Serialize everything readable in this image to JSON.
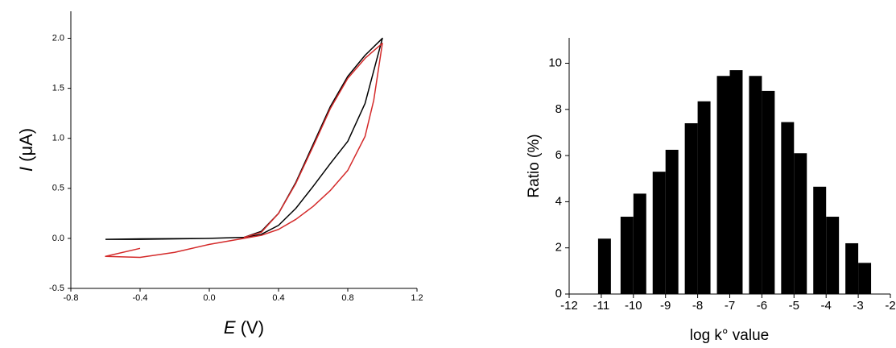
{
  "chart_data": [
    {
      "type": "line",
      "xlabel_symbol": "E",
      "xlabel_unit": "(V)",
      "ylabel_symbol": "I",
      "ylabel_unit": "(μA)",
      "xlim": [
        -0.8,
        1.2
      ],
      "xticks": [
        -0.8,
        -0.4,
        {
          "value": 0,
          "label": "0.0"
        },
        0.4,
        0.8,
        1.2
      ],
      "ylim": [
        -0.5,
        2.27
      ],
      "yticks": [
        -0.5,
        {
          "value": 0,
          "label": "0.0"
        },
        0.5,
        {
          "value": 1,
          "label": "1.0"
        },
        1.5,
        {
          "value": 2,
          "label": "2.0"
        }
      ],
      "series": [
        {
          "color": "#000000",
          "x": [
            -0.6,
            -0.4,
            0,
            0.2,
            0.3,
            0.4,
            0.5,
            0.6,
            0.7,
            0.8,
            0.9,
            1.0,
            0.9,
            0.8,
            0.7,
            0.6,
            0.5,
            0.4,
            0.3,
            0.2,
            0,
            -0.4,
            -0.6
          ],
          "values": [
            -0.01,
            -0.005,
            0,
            0.01,
            0.04,
            0.13,
            0.3,
            0.52,
            0.75,
            0.97,
            1.35,
            2.0,
            1.83,
            1.62,
            1.32,
            0.94,
            0.56,
            0.25,
            0.07,
            0.01,
            0,
            -0.01,
            -0.01
          ]
        },
        {
          "color": "#d42a2a",
          "x": [
            -0.4,
            -0.6,
            -0.4,
            -0.2,
            0,
            0.2,
            0.3,
            0.4,
            0.5,
            0.6,
            0.7,
            0.8,
            0.9,
            0.95,
            1.0,
            0.9,
            0.8,
            0.7,
            0.6,
            0.5,
            0.4,
            0.3,
            0.2
          ],
          "values": [
            -0.1,
            -0.18,
            -0.19,
            -0.14,
            -0.06,
            0,
            0.03,
            0.09,
            0.19,
            0.32,
            0.48,
            0.68,
            1.02,
            1.38,
            1.95,
            1.8,
            1.6,
            1.3,
            0.92,
            0.55,
            0.25,
            0.06,
            0.01
          ]
        }
      ]
    },
    {
      "type": "bar",
      "xlabel": "log k° value",
      "ylabel": "Ratio (%)",
      "color": "#000000",
      "xlim": [
        -12,
        -2
      ],
      "xticks": [
        -12,
        -11,
        -10,
        -9,
        -8,
        -7,
        -6,
        -5,
        -4,
        -3,
        -2
      ],
      "ylim": [
        0,
        11.1
      ],
      "yticks": [
        0,
        2,
        4,
        6,
        8,
        10
      ],
      "x": [
        -10.9,
        -10.2,
        -9.8,
        -9.2,
        -8.8,
        -8.2,
        -7.8,
        -7.2,
        -6.8,
        -6.2,
        -5.8,
        -5.2,
        -4.8,
        -4.2,
        -3.8,
        -3.2,
        -2.8
      ],
      "values": [
        2.4,
        3.35,
        4.35,
        5.3,
        6.25,
        7.4,
        8.35,
        9.45,
        9.7,
        9.45,
        8.8,
        7.45,
        6.1,
        4.65,
        3.35,
        2.2,
        1.35
      ]
    }
  ]
}
